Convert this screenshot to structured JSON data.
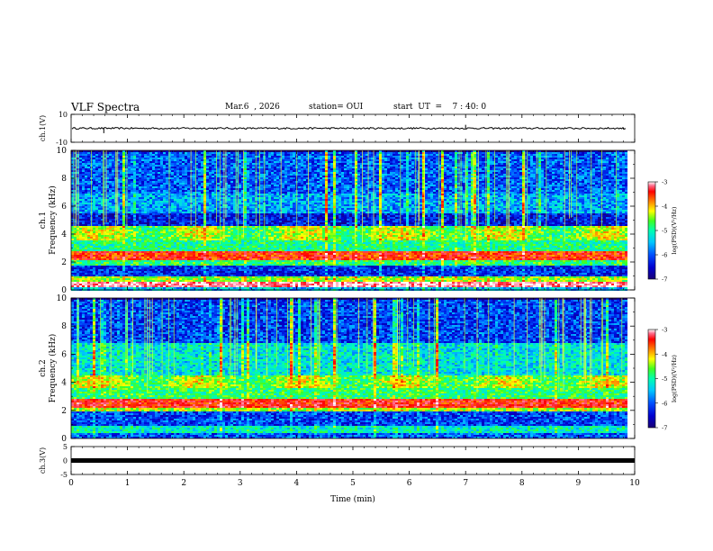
{
  "header": {
    "title": "VLF Spectra",
    "date": "Mar.6  , 2026",
    "station": "station= OUI",
    "start_ut": "start  UT  =    7 : 40: 0"
  },
  "colors": {
    "waveform": "#000000",
    "colormap": [
      "#1a0074",
      "#0000d0",
      "#0050ff",
      "#00c8ff",
      "#00ffb0",
      "#40ff20",
      "#ffff00",
      "#ff8000",
      "#ff0000",
      "#ff6a8a",
      "#ffffff"
    ]
  },
  "chart_data": [
    {
      "type": "line",
      "ylabel": "ch.1(V)",
      "ylim": [
        -10,
        10
      ],
      "yticks": [
        "10",
        "-10"
      ],
      "baseline_value": 0,
      "noise_amplitude": 0.6,
      "spikes": [
        {
          "x": 0.58,
          "y": -3.5
        },
        {
          "x": 7.0,
          "y": 2.5
        },
        {
          "x": 9.8,
          "y": -0.8
        }
      ]
    },
    {
      "type": "heatmap",
      "ylabel": "ch.1\nFrequency (kHz)",
      "ylim": [
        0,
        10
      ],
      "yticks": [
        "0",
        "2",
        "4",
        "6",
        "8",
        "10"
      ],
      "colorbar": {
        "label": "log(PSD)(V²/Hz)",
        "range": [
          -7,
          -3
        ],
        "ticks": [
          "-3",
          "-4",
          "-5",
          "-6",
          "-7"
        ]
      },
      "bands_khz": [
        {
          "from": 0.0,
          "to": 0.3,
          "level": -5.8
        },
        {
          "from": 0.3,
          "to": 0.6,
          "level": -3.3
        },
        {
          "from": 0.6,
          "to": 1.0,
          "level": -4.8
        },
        {
          "from": 1.0,
          "to": 1.8,
          "level": -6.4
        },
        {
          "from": 1.8,
          "to": 2.2,
          "level": -5.2
        },
        {
          "from": 2.2,
          "to": 2.8,
          "level": -3.9
        },
        {
          "from": 2.8,
          "to": 3.6,
          "level": -5.3
        },
        {
          "from": 3.6,
          "to": 4.6,
          "level": -4.9
        },
        {
          "from": 4.6,
          "to": 5.5,
          "level": -6.5
        },
        {
          "from": 5.5,
          "to": 7.0,
          "level": -5.9
        },
        {
          "from": 7.0,
          "to": 10.0,
          "level": -6.2
        }
      ]
    },
    {
      "type": "heatmap",
      "ylabel": "ch.2\nFrequency (kHz)",
      "ylim": [
        0,
        10
      ],
      "yticks": [
        "0",
        "2",
        "4",
        "6",
        "8",
        "10"
      ],
      "colorbar": {
        "label": "log(PSD)(V²/Hz)",
        "range": [
          -7,
          -3
        ],
        "ticks": [
          "-3",
          "-4",
          "-5",
          "-6",
          "-7"
        ]
      },
      "bands_khz": [
        {
          "from": 0.0,
          "to": 0.4,
          "level": -6.2
        },
        {
          "from": 0.4,
          "to": 1.0,
          "level": -5.5
        },
        {
          "from": 1.0,
          "to": 2.0,
          "level": -6.3
        },
        {
          "from": 2.0,
          "to": 2.3,
          "level": -4.8
        },
        {
          "from": 2.3,
          "to": 2.9,
          "level": -3.8
        },
        {
          "from": 2.9,
          "to": 3.6,
          "level": -5.2
        },
        {
          "from": 3.6,
          "to": 4.6,
          "level": -4.9
        },
        {
          "from": 4.6,
          "to": 6.8,
          "level": -5.6
        },
        {
          "from": 6.8,
          "to": 10.0,
          "level": -6.3
        }
      ]
    },
    {
      "type": "line",
      "ylabel": "ch.3(V)",
      "ylim": [
        -5,
        5
      ],
      "yticks": [
        "5",
        "0",
        "-5"
      ],
      "baseline_value": 0,
      "noise_amplitude": 0.0
    }
  ],
  "x_axis": {
    "label": "Time (min)",
    "xlim": [
      0,
      10
    ],
    "ticks": [
      "0",
      "1",
      "2",
      "3",
      "4",
      "5",
      "6",
      "7",
      "8",
      "9",
      "10"
    ]
  }
}
